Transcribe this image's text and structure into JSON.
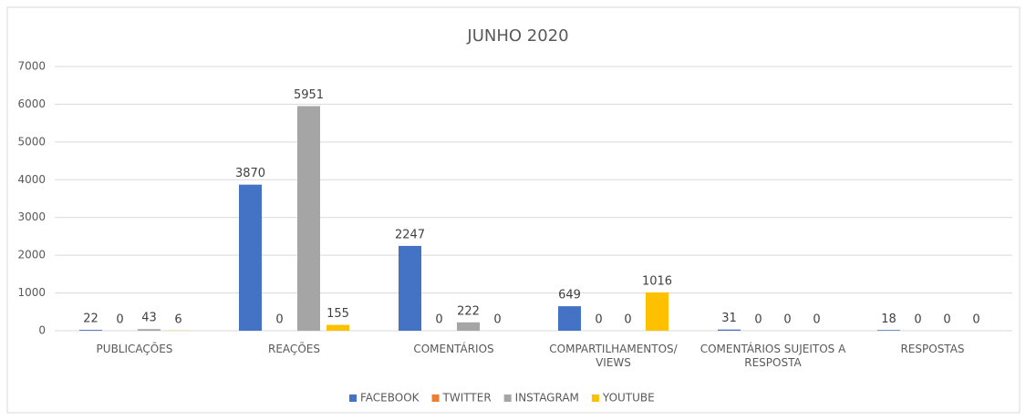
{
  "chart_data": {
    "type": "bar",
    "title": "JUNHO 2020",
    "categories": [
      "PUBLICAÇÕES",
      "REAÇÕES",
      "COMENTÁRIOS",
      "COMPARTILHAMENTOS/ VIEWS",
      "COMENTÁRIOS SUJEITOS A RESPOSTA",
      "RESPOSTAS"
    ],
    "series": [
      {
        "name": "FACEBOOK",
        "color": "#4472c4",
        "values": [
          22,
          3870,
          2247,
          649,
          31,
          18
        ]
      },
      {
        "name": "TWITTER",
        "color": "#ed7d31",
        "values": [
          0,
          0,
          0,
          0,
          0,
          0
        ]
      },
      {
        "name": "INSTAGRAM",
        "color": "#a5a5a5",
        "values": [
          43,
          5951,
          222,
          0,
          0,
          0
        ]
      },
      {
        "name": "YOUTUBE",
        "color": "#ffc000",
        "values": [
          6,
          155,
          0,
          1016,
          0,
          0
        ]
      }
    ],
    "ylim": [
      0,
      7000
    ],
    "yticks": [
      0,
      1000,
      2000,
      3000,
      4000,
      5000,
      6000,
      7000
    ],
    "grid": true,
    "legend": "bottom"
  }
}
